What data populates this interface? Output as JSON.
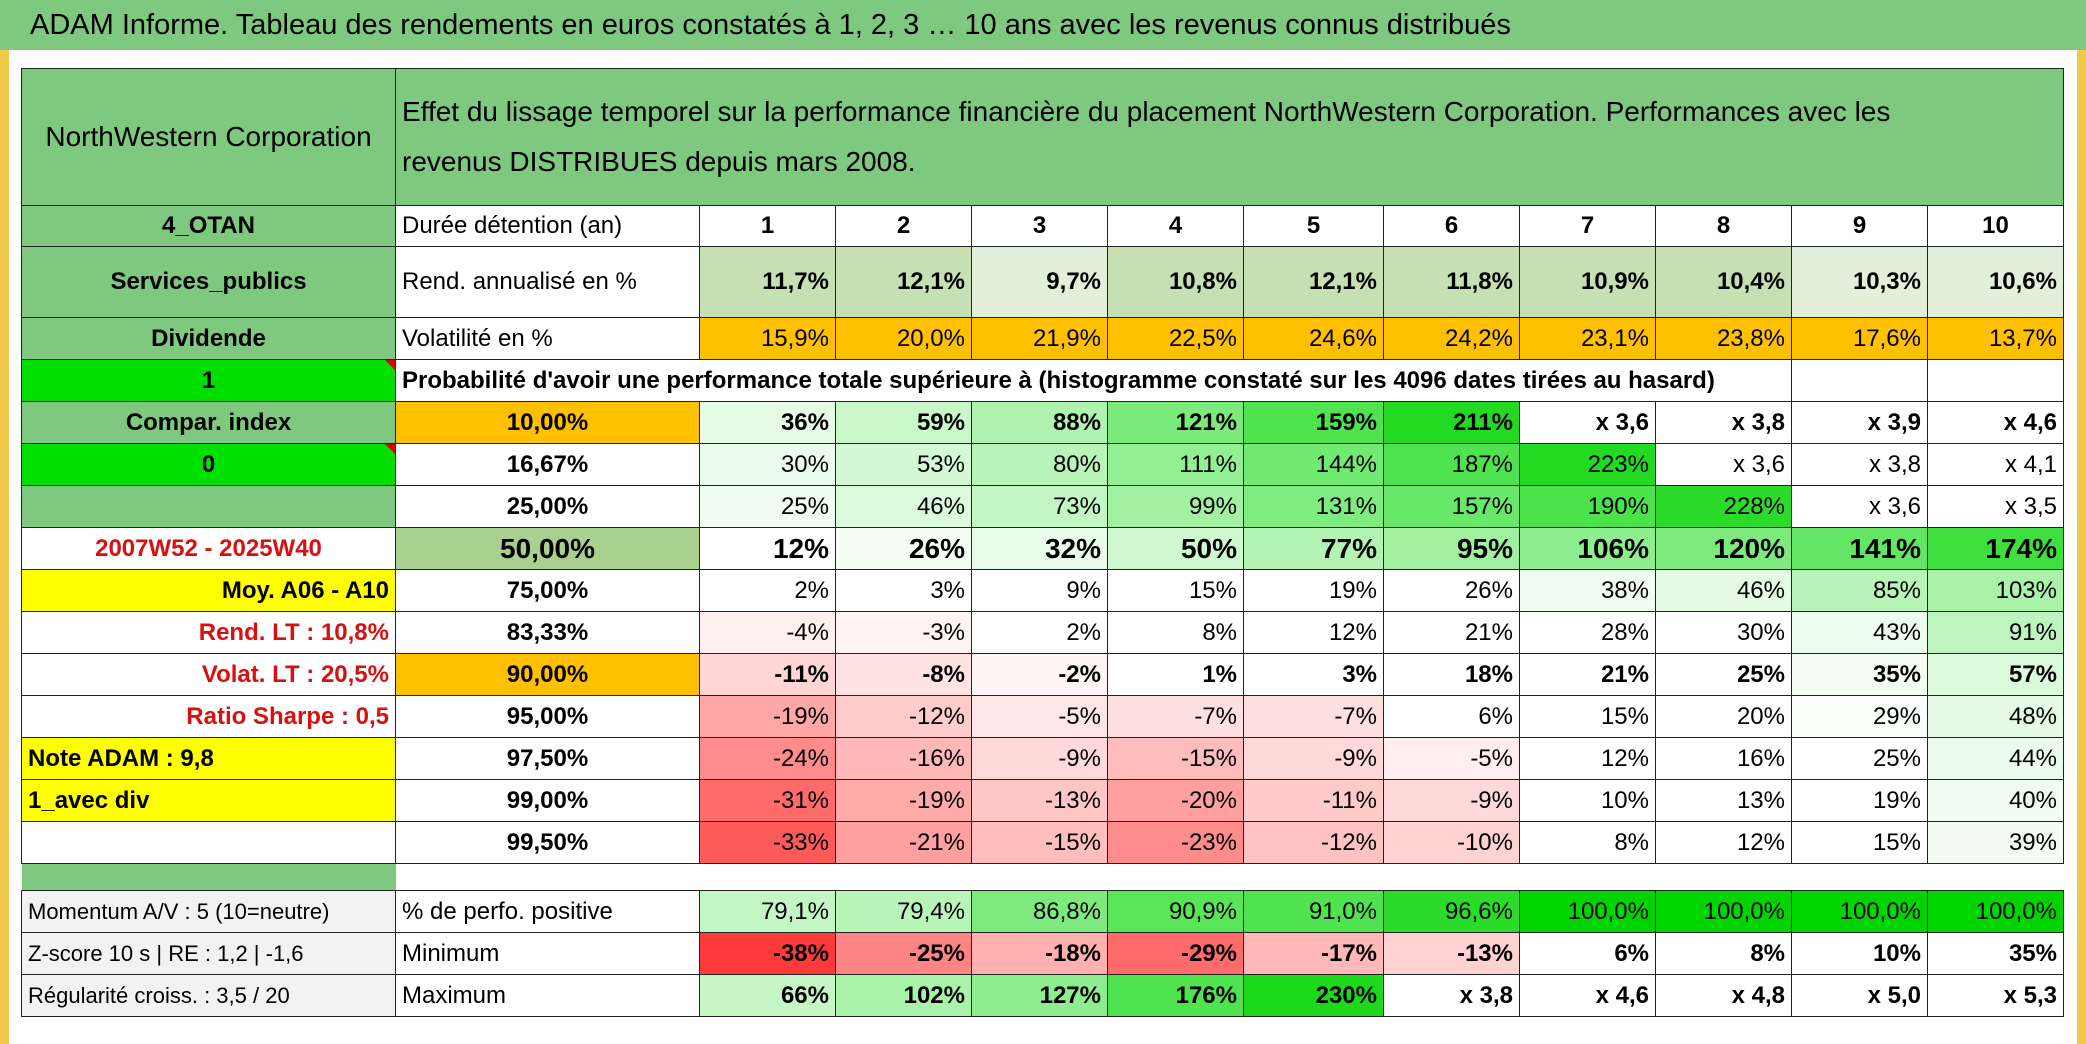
{
  "header": {
    "title": "ADAM Informe. Tableau des rendements en euros constatés à 1, 2, 3 … 10 ans avec les revenus connus distribués"
  },
  "top": {
    "company": "NorthWestern Corporation",
    "description_line1": "Effet du lissage temporel sur la performance financière du placement NorthWestern Corporation. Performances avec les",
    "description_line2": "revenus DISTRIBUES depuis mars 2008."
  },
  "left_col": {
    "code": "4_OTAN",
    "sector": "Services_publics",
    "dividend": "Dividende",
    "value_1": "1",
    "compar": "Compar. index",
    "value_0": "0",
    "period": "2007W52 - 2025W40",
    "moy": "Moy. A06 - A10",
    "rend_lt": "Rend. LT :   10,8%",
    "volat_lt": "Volat. LT :   20,5%",
    "sharpe": "Ratio Sharpe :    0,5",
    "note": "Note ADAM : 9,8",
    "avec_div": "1_avec div",
    "momentum": "Momentum A/V : 5 (10=neutre)",
    "zscore": "Z-score 10 s | RE : 1,2 | -1,6",
    "regularite": "Régularité croiss. : 3,5 / 20"
  },
  "labels": {
    "duree": "Durée détention (an)",
    "rend": "Rend. annualisé en %",
    "volat": "Volatilité en %",
    "proba": "Probabilité d'avoir une performance totale supérieure à (histogramme constaté sur les 4096 dates tirées au hasard)",
    "perfo_pos": "% de perfo. positive",
    "minimum": "Minimum",
    "maximum": "Maximum"
  },
  "years": [
    "1",
    "2",
    "3",
    "4",
    "5",
    "6",
    "7",
    "8",
    "9",
    "10"
  ],
  "rend": [
    "11,7%",
    "12,1%",
    "9,7%",
    "10,8%",
    "12,1%",
    "11,8%",
    "10,9%",
    "10,4%",
    "10,3%",
    "10,6%"
  ],
  "volat": [
    "15,9%",
    "20,0%",
    "21,9%",
    "22,5%",
    "24,6%",
    "24,2%",
    "23,1%",
    "23,8%",
    "17,6%",
    "13,7%"
  ],
  "proba_rows": [
    {
      "p": "10,00%",
      "v": [
        "36%",
        "59%",
        "88%",
        "121%",
        "159%",
        "211%",
        "x 3,6",
        "x 3,8",
        "x 3,9",
        "x 4,6"
      ]
    },
    {
      "p": "16,67%",
      "v": [
        "30%",
        "53%",
        "80%",
        "111%",
        "144%",
        "187%",
        "223%",
        "x 3,6",
        "x 3,8",
        "x 4,1"
      ]
    },
    {
      "p": "25,00%",
      "v": [
        "25%",
        "46%",
        "73%",
        "99%",
        "131%",
        "157%",
        "190%",
        "228%",
        "x 3,6",
        "x 3,5"
      ]
    },
    {
      "p": "50,00%",
      "v": [
        "12%",
        "26%",
        "32%",
        "50%",
        "77%",
        "95%",
        "106%",
        "120%",
        "141%",
        "174%"
      ]
    },
    {
      "p": "75,00%",
      "v": [
        "2%",
        "3%",
        "9%",
        "15%",
        "19%",
        "26%",
        "38%",
        "46%",
        "85%",
        "103%"
      ]
    },
    {
      "p": "83,33%",
      "v": [
        "-4%",
        "-3%",
        "2%",
        "8%",
        "12%",
        "21%",
        "28%",
        "30%",
        "43%",
        "91%"
      ]
    },
    {
      "p": "90,00%",
      "v": [
        "-11%",
        "-8%",
        "-2%",
        "1%",
        "3%",
        "18%",
        "21%",
        "25%",
        "35%",
        "57%"
      ]
    },
    {
      "p": "95,00%",
      "v": [
        "-19%",
        "-12%",
        "-5%",
        "-7%",
        "-7%",
        "6%",
        "15%",
        "20%",
        "29%",
        "48%"
      ]
    },
    {
      "p": "97,50%",
      "v": [
        "-24%",
        "-16%",
        "-9%",
        "-15%",
        "-9%",
        "-5%",
        "12%",
        "16%",
        "25%",
        "44%"
      ]
    },
    {
      "p": "99,00%",
      "v": [
        "-31%",
        "-19%",
        "-13%",
        "-20%",
        "-11%",
        "-9%",
        "10%",
        "13%",
        "19%",
        "40%"
      ]
    },
    {
      "p": "99,50%",
      "v": [
        "-33%",
        "-21%",
        "-15%",
        "-23%",
        "-12%",
        "-10%",
        "8%",
        "12%",
        "15%",
        "39%"
      ]
    }
  ],
  "perfo_pos": [
    "79,1%",
    "79,4%",
    "86,8%",
    "90,9%",
    "91,0%",
    "96,6%",
    "100,0%",
    "100,0%",
    "100,0%",
    "100,0%"
  ],
  "minimum": [
    "-38%",
    "-25%",
    "-18%",
    "-29%",
    "-17%",
    "-13%",
    "6%",
    "8%",
    "10%",
    "35%"
  ],
  "maximum": [
    "66%",
    "102%",
    "127%",
    "176%",
    "230%",
    "x 3,8",
    "x 4,6",
    "x 4,8",
    "x 5,0",
    "x 5,3"
  ],
  "colors": {
    "rend": [
      "#c6e0b4",
      "#c6e0b4",
      "#e2efda",
      "#c6e0b4",
      "#c6e0b4",
      "#c6e0b4",
      "#c6e0b4",
      "#c6e0b4",
      "#e2efda",
      "#e2efda"
    ],
    "proba": [
      [
        "#e6fbe6",
        "#c9f7c9",
        "#b0f3b0",
        "#7aeb7a",
        "#4fe34f",
        "#22da22",
        "#ffffff",
        "#ffffff",
        "#ffffff",
        "#ffffff"
      ],
      [
        "#ecfcec",
        "#d4f8d4",
        "#b8f4b8",
        "#92ef92",
        "#70ea70",
        "#4ee34e",
        "#22da22",
        "#ffffff",
        "#ffffff",
        "#ffffff"
      ],
      [
        "#effcef",
        "#dbfadb",
        "#c2f6c2",
        "#a2f1a2",
        "#7eec7e",
        "#68e868",
        "#4ae34a",
        "#2adb2a",
        "#ffffff",
        "#ffffff"
      ],
      [
        "#ffffff",
        "#f5fef5",
        "#e8fbe8",
        "#d0f8d0",
        "#b3f3b3",
        "#a0f0a0",
        "#8eed8e",
        "#7eea7e",
        "#64e564",
        "#3edf3e"
      ],
      [
        "#ffffff",
        "#ffffff",
        "#ffffff",
        "#ffffff",
        "#ffffff",
        "#ffffff",
        "#f0fcf0",
        "#e4fae4",
        "#b8f4b8",
        "#aaf2aa"
      ],
      [
        "#fff0f0",
        "#fff3f3",
        "#ffffff",
        "#ffffff",
        "#ffffff",
        "#ffffff",
        "#ffffff",
        "#ffffff",
        "#eefcee",
        "#bef5be"
      ],
      [
        "#ffd5d5",
        "#ffe2e2",
        "#fff5f5",
        "#ffffff",
        "#ffffff",
        "#ffffff",
        "#ffffff",
        "#ffffff",
        "#f4fdf4",
        "#dbfadb"
      ],
      [
        "#ffa7a7",
        "#ffcccc",
        "#ffe6e6",
        "#ffe0e0",
        "#ffe0e0",
        "#ffffff",
        "#ffffff",
        "#ffffff",
        "#fafefa",
        "#e4fae4"
      ],
      [
        "#ff8c8c",
        "#ffb8b8",
        "#ffd9d9",
        "#ffbcbc",
        "#ffd9d9",
        "#ffeeee",
        "#ffffff",
        "#ffffff",
        "#ffffff",
        "#ecfcec"
      ],
      [
        "#ff6a6a",
        "#ffabab",
        "#ffc6c6",
        "#ff9f9f",
        "#ffcaca",
        "#ffd9d9",
        "#ffffff",
        "#ffffff",
        "#ffffff",
        "#f0fcf0"
      ],
      [
        "#ff5a5a",
        "#ff9f9f",
        "#ffbebe",
        "#ff8c8c",
        "#ffc2c2",
        "#ffd2d2",
        "#ffffff",
        "#ffffff",
        "#ffffff",
        "#f2fcf2"
      ]
    ],
    "perfo_pos": [
      "#c2f6c2",
      "#b9f4b9",
      "#7eea7e",
      "#58e558",
      "#50e350",
      "#2adb2a",
      "#00d500",
      "#00d500",
      "#00d500",
      "#00d500"
    ],
    "minimum": [
      "#ff3a3a",
      "#ff8484",
      "#ffb0b0",
      "#ff6a6a",
      "#ffb8b8",
      "#ffd2d2",
      "#ffffff",
      "#ffffff",
      "#ffffff",
      "#ffffff"
    ],
    "maximum": [
      "#c6f6c6",
      "#a9f2a9",
      "#8eed8e",
      "#4fe34f",
      "#1cd91c",
      "#ffffff",
      "#ffffff",
      "#ffffff",
      "#ffffff",
      "#ffffff"
    ]
  }
}
